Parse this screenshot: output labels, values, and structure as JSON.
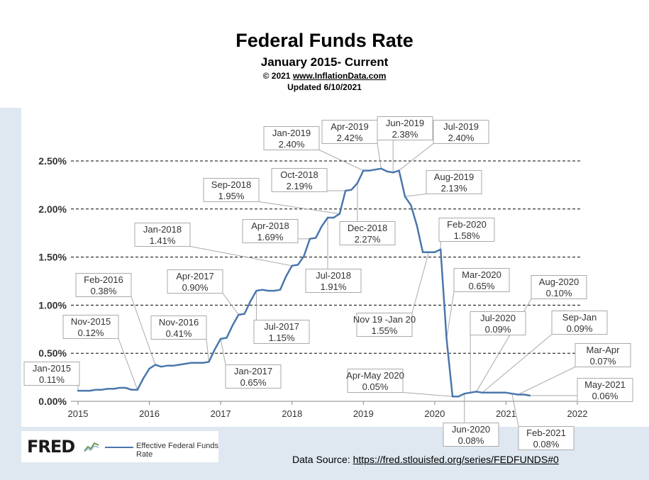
{
  "header": {
    "title": "Federal Funds Rate",
    "subtitle": "January 2015- Current",
    "copyright": "© 2021",
    "site": "www.InflationData.com",
    "updated": "Updated  6/10/2021"
  },
  "fred": {
    "logo": "FRED",
    "legend": "Effective Federal Funds Rate",
    "line_color": "#4a77ad"
  },
  "source": {
    "label": "Data Source:",
    "url": "https://fred.stlouisfed.org/series/FEDFUNDS#0"
  },
  "chart_data": {
    "type": "line",
    "title": "Federal Funds Rate",
    "xlabel": "",
    "ylabel": "",
    "xlim": [
      2015,
      2022
    ],
    "ylim": [
      0,
      2.6
    ],
    "grid": "horizontal dashed",
    "x_ticks": [
      "2015",
      "2016",
      "2017",
      "2018",
      "2019",
      "2020",
      "2021",
      "2022"
    ],
    "y_ticks": [
      {
        "value": 0,
        "label": "0.00%"
      },
      {
        "value": 0.5,
        "label": "0.50%"
      },
      {
        "value": 1.0,
        "label": "1.00%"
      },
      {
        "value": 1.5,
        "label": "1.50%"
      },
      {
        "value": 2.0,
        "label": "2.00%"
      },
      {
        "value": 2.5,
        "label": "2.50%"
      }
    ],
    "series": [
      {
        "name": "Effective Federal Funds Rate",
        "color": "#4a77ad",
        "points": [
          [
            "2015-01",
            0.11
          ],
          [
            "2015-02",
            0.11
          ],
          [
            "2015-03",
            0.11
          ],
          [
            "2015-04",
            0.12
          ],
          [
            "2015-05",
            0.12
          ],
          [
            "2015-06",
            0.13
          ],
          [
            "2015-07",
            0.13
          ],
          [
            "2015-08",
            0.14
          ],
          [
            "2015-09",
            0.14
          ],
          [
            "2015-10",
            0.12
          ],
          [
            "2015-11",
            0.12
          ],
          [
            "2015-12",
            0.24
          ],
          [
            "2016-01",
            0.34
          ],
          [
            "2016-02",
            0.38
          ],
          [
            "2016-03",
            0.36
          ],
          [
            "2016-04",
            0.37
          ],
          [
            "2016-05",
            0.37
          ],
          [
            "2016-06",
            0.38
          ],
          [
            "2016-07",
            0.39
          ],
          [
            "2016-08",
            0.4
          ],
          [
            "2016-09",
            0.4
          ],
          [
            "2016-10",
            0.4
          ],
          [
            "2016-11",
            0.41
          ],
          [
            "2016-12",
            0.54
          ],
          [
            "2017-01",
            0.65
          ],
          [
            "2017-02",
            0.66
          ],
          [
            "2017-03",
            0.79
          ],
          [
            "2017-04",
            0.9
          ],
          [
            "2017-05",
            0.91
          ],
          [
            "2017-06",
            1.04
          ],
          [
            "2017-07",
            1.15
          ],
          [
            "2017-08",
            1.16
          ],
          [
            "2017-09",
            1.15
          ],
          [
            "2017-10",
            1.15
          ],
          [
            "2017-11",
            1.16
          ],
          [
            "2017-12",
            1.3
          ],
          [
            "2018-01",
            1.41
          ],
          [
            "2018-02",
            1.42
          ],
          [
            "2018-03",
            1.51
          ],
          [
            "2018-04",
            1.69
          ],
          [
            "2018-05",
            1.7
          ],
          [
            "2018-06",
            1.82
          ],
          [
            "2018-07",
            1.91
          ],
          [
            "2018-08",
            1.91
          ],
          [
            "2018-09",
            1.95
          ],
          [
            "2018-10",
            2.19
          ],
          [
            "2018-11",
            2.2
          ],
          [
            "2018-12",
            2.27
          ],
          [
            "2019-01",
            2.4
          ],
          [
            "2019-02",
            2.4
          ],
          [
            "2019-03",
            2.41
          ],
          [
            "2019-04",
            2.42
          ],
          [
            "2019-05",
            2.39
          ],
          [
            "2019-06",
            2.38
          ],
          [
            "2019-07",
            2.4
          ],
          [
            "2019-08",
            2.13
          ],
          [
            "2019-09",
            2.04
          ],
          [
            "2019-10",
            1.83
          ],
          [
            "2019-11",
            1.55
          ],
          [
            "2019-12",
            1.55
          ],
          [
            "2020-01",
            1.55
          ],
          [
            "2020-02",
            1.58
          ],
          [
            "2020-03",
            0.65
          ],
          [
            "2020-04",
            0.05
          ],
          [
            "2020-05",
            0.05
          ],
          [
            "2020-06",
            0.08
          ],
          [
            "2020-07",
            0.09
          ],
          [
            "2020-08",
            0.1
          ],
          [
            "2020-09",
            0.09
          ],
          [
            "2020-10",
            0.09
          ],
          [
            "2020-11",
            0.09
          ],
          [
            "2020-12",
            0.09
          ],
          [
            "2021-01",
            0.09
          ],
          [
            "2021-02",
            0.08
          ],
          [
            "2021-03",
            0.07
          ],
          [
            "2021-04",
            0.07
          ],
          [
            "2021-05",
            0.06
          ]
        ]
      }
    ],
    "annotations": [
      {
        "date": "Jan-2015",
        "value": "0.11%",
        "target": "2015-01"
      },
      {
        "date": "Nov-2015",
        "value": "0.12%",
        "target": "2015-11"
      },
      {
        "date": "Feb-2016",
        "value": "0.38%",
        "target": "2016-02"
      },
      {
        "date": "Nov-2016",
        "value": "0.41%",
        "target": "2016-11"
      },
      {
        "date": "Jan-2017",
        "value": "0.65%",
        "target": "2017-01"
      },
      {
        "date": "Apr-2017",
        "value": "0.90%",
        "target": "2017-04"
      },
      {
        "date": "Jul-2017",
        "value": "1.15%",
        "target": "2017-07"
      },
      {
        "date": "Jan-2018",
        "value": "1.41%",
        "target": "2018-01"
      },
      {
        "date": "Apr-2018",
        "value": "1.69%",
        "target": "2018-04"
      },
      {
        "date": "Jul-2018",
        "value": "1.91%",
        "target": "2018-07"
      },
      {
        "date": "Sep-2018",
        "value": "1.95%",
        "target": "2018-09"
      },
      {
        "date": "Oct-2018",
        "value": "2.19%",
        "target": "2018-10"
      },
      {
        "date": "Dec-2018",
        "value": "2.27%",
        "target": "2018-12"
      },
      {
        "date": "Jan-2019",
        "value": "2.40%",
        "target": "2019-01"
      },
      {
        "date": "Apr-2019",
        "value": "2.42%",
        "target": "2019-04"
      },
      {
        "date": "Jun-2019",
        "value": "2.38%",
        "target": "2019-06"
      },
      {
        "date": "Jul-2019",
        "value": "2.40%",
        "target": "2019-07"
      },
      {
        "date": "Aug-2019",
        "value": "2.13%",
        "target": "2019-08"
      },
      {
        "date": "Nov 19 -Jan 20",
        "value": "1.55%",
        "target": "2019-12"
      },
      {
        "date": "Feb-2020",
        "value": "1.58%",
        "target": "2020-02"
      },
      {
        "date": "Mar-2020",
        "value": "0.65%",
        "target": "2020-03"
      },
      {
        "date": "Apr-May 2020",
        "value": "0.05%",
        "target": "2020-04"
      },
      {
        "date": "Jun-2020",
        "value": "0.08%",
        "target": "2020-06"
      },
      {
        "date": "Jul-2020",
        "value": "0.09%",
        "target": "2020-07"
      },
      {
        "date": "Aug-2020",
        "value": "0.10%",
        "target": "2020-08"
      },
      {
        "date": "Sep-Jan",
        "value": "0.09%",
        "target": "2020-09"
      },
      {
        "date": "Feb-2021",
        "value": "0.08%",
        "target": "2021-02"
      },
      {
        "date": "Mar-Apr",
        "value": "0.07%",
        "target": "2021-03"
      },
      {
        "date": "May-2021",
        "value": "0.06%",
        "target": "2021-05"
      }
    ]
  }
}
